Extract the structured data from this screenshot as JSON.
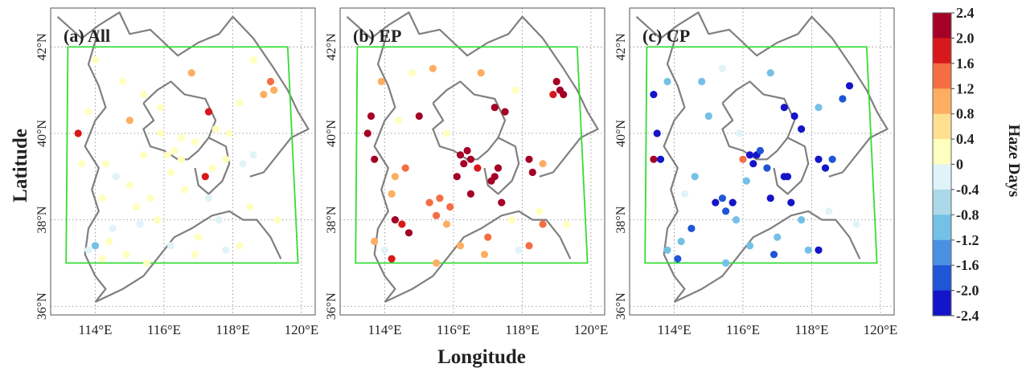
{
  "figure": {
    "x_axis_label": "Longitude",
    "y_axis_label": "Latitude",
    "lon_ticks": [
      "114°E",
      "116°E",
      "118°E",
      "120°E"
    ],
    "lat_ticks": [
      "42°N",
      "40°N",
      "38°N",
      "36°N"
    ],
    "lon_range": [
      112.7,
      120.4
    ],
    "lat_range": [
      35.8,
      42.9
    ],
    "grid": "dotted",
    "domain_box_color": "#33dd33",
    "panels": [
      {
        "id": "all",
        "title": "(a) All"
      },
      {
        "id": "ep",
        "title": "(b) EP"
      },
      {
        "id": "cp",
        "title": "(c) CP"
      }
    ],
    "colorbar": {
      "label": "Haze Days",
      "ticks": [
        "2.4",
        "2.0",
        "1.6",
        "1.2",
        "0.8",
        "0.4",
        "0",
        "-0.4",
        "-0.8",
        "-1.2",
        "-1.6",
        "-2.0",
        "-2.4"
      ],
      "colors": [
        "#a50026",
        "#d7191c",
        "#f46d43",
        "#fdae61",
        "#fee090",
        "#ffffbf",
        "#e0f3f8",
        "#abd9e9",
        "#74c0e6",
        "#4a90e2",
        "#1f55d6",
        "#1414c8"
      ]
    }
  },
  "chart_data": {
    "type": "scatter",
    "value_label": "Haze Days",
    "value_range": [
      -2.4,
      2.4
    ],
    "panels": [
      {
        "name": "(a) All",
        "points": [
          [
            113.5,
            40.0,
            1.6
          ],
          [
            113.8,
            40.5,
            0.4
          ],
          [
            113.6,
            39.3,
            0.4
          ],
          [
            114.3,
            39.3,
            0.4
          ],
          [
            114.2,
            38.5,
            0.4
          ],
          [
            114.5,
            37.8,
            -0.4
          ],
          [
            114.0,
            37.4,
            -0.8
          ],
          [
            114.4,
            37.5,
            0.4
          ],
          [
            113.8,
            37.3,
            -0.4
          ],
          [
            114.9,
            37.2,
            0.4
          ],
          [
            115.2,
            38.3,
            0.4
          ],
          [
            115.6,
            38.5,
            0.4
          ],
          [
            115.8,
            38.0,
            0.4
          ],
          [
            115.3,
            37.9,
            -0.4
          ],
          [
            116.1,
            39.5,
            0.4
          ],
          [
            116.3,
            39.6,
            0.4
          ],
          [
            116.5,
            39.4,
            0.4
          ],
          [
            116.2,
            39.1,
            0.4
          ],
          [
            116.6,
            38.7,
            0.4
          ],
          [
            117.2,
            39.0,
            1.6
          ],
          [
            117.4,
            39.2,
            0.4
          ],
          [
            117.3,
            38.5,
            -0.4
          ],
          [
            117.3,
            40.5,
            1.6
          ],
          [
            117.5,
            40.1,
            0.4
          ],
          [
            117.8,
            39.4,
            0.4
          ],
          [
            118.3,
            39.3,
            -0.4
          ],
          [
            118.6,
            39.5,
            -0.4
          ],
          [
            117.9,
            40.0,
            0.4
          ],
          [
            118.2,
            40.7,
            0.4
          ],
          [
            118.9,
            40.9,
            0.8
          ],
          [
            119.1,
            41.2,
            1.2
          ],
          [
            119.2,
            41.0,
            0.8
          ],
          [
            116.8,
            41.4,
            0.8
          ],
          [
            115.0,
            40.3,
            0.8
          ],
          [
            114.8,
            41.2,
            0.4
          ],
          [
            115.4,
            40.9,
            0.4
          ],
          [
            115.9,
            40.6,
            0.4
          ],
          [
            116.5,
            39.9,
            0.4
          ],
          [
            117.0,
            37.6,
            0.4
          ],
          [
            118.2,
            37.4,
            0.4
          ],
          [
            117.8,
            37.3,
            -0.4
          ],
          [
            116.2,
            37.4,
            -0.4
          ],
          [
            115.5,
            37.0,
            0.4
          ],
          [
            118.5,
            38.3,
            0.4
          ],
          [
            119.3,
            38.0,
            0.4
          ],
          [
            114.6,
            39.0,
            -0.4
          ],
          [
            115.0,
            38.8,
            0.4
          ],
          [
            115.9,
            40.0,
            0.4
          ],
          [
            118.6,
            41.7,
            0.4
          ],
          [
            114.0,
            41.7,
            0.4
          ],
          [
            116.9,
            39.8,
            0.4
          ],
          [
            117.6,
            38.0,
            -0.4
          ],
          [
            115.4,
            39.5,
            0.4
          ],
          [
            114.2,
            37.1,
            0.4
          ],
          [
            116.9,
            37.2,
            0.4
          ]
        ]
      },
      {
        "name": "(b) EP",
        "points": [
          [
            113.5,
            40.0,
            2.4
          ],
          [
            113.6,
            40.4,
            2.4
          ],
          [
            113.7,
            39.4,
            2.4
          ],
          [
            113.9,
            41.2,
            0.8
          ],
          [
            114.4,
            40.3,
            0.4
          ],
          [
            115.0,
            40.4,
            2.4
          ],
          [
            114.2,
            38.6,
            0.8
          ],
          [
            114.3,
            38.0,
            2.0
          ],
          [
            114.5,
            37.9,
            1.6
          ],
          [
            114.7,
            37.7,
            2.0
          ],
          [
            113.7,
            37.5,
            0.8
          ],
          [
            114.0,
            37.3,
            -0.4
          ],
          [
            114.2,
            37.1,
            1.6
          ],
          [
            115.3,
            38.4,
            1.2
          ],
          [
            115.6,
            38.5,
            1.2
          ],
          [
            115.9,
            38.3,
            1.2
          ],
          [
            115.5,
            38.1,
            1.2
          ],
          [
            115.8,
            37.9,
            0.8
          ],
          [
            116.2,
            39.5,
            2.4
          ],
          [
            116.4,
            39.6,
            2.4
          ],
          [
            116.3,
            39.3,
            2.4
          ],
          [
            116.5,
            39.4,
            2.0
          ],
          [
            116.7,
            39.2,
            1.6
          ],
          [
            116.1,
            39.0,
            2.0
          ],
          [
            116.5,
            38.6,
            2.0
          ],
          [
            117.2,
            39.0,
            2.4
          ],
          [
            117.3,
            39.2,
            2.4
          ],
          [
            117.1,
            38.9,
            2.0
          ],
          [
            117.4,
            38.4,
            2.0
          ],
          [
            117.2,
            40.6,
            2.4
          ],
          [
            117.5,
            40.5,
            2.4
          ],
          [
            118.2,
            39.4,
            2.4
          ],
          [
            118.3,
            39.1,
            2.0
          ],
          [
            118.6,
            39.3,
            0.8
          ],
          [
            118.9,
            40.9,
            1.6
          ],
          [
            119.1,
            41.0,
            2.4
          ],
          [
            119.2,
            40.9,
            2.4
          ],
          [
            119.0,
            41.2,
            2.0
          ],
          [
            116.8,
            41.4,
            0.8
          ],
          [
            115.4,
            41.5,
            0.8
          ],
          [
            114.8,
            41.4,
            0.4
          ],
          [
            117.8,
            41.0,
            0.4
          ],
          [
            118.2,
            37.4,
            1.2
          ],
          [
            117.9,
            37.3,
            -0.4
          ],
          [
            116.2,
            37.4,
            0.8
          ],
          [
            117.0,
            37.6,
            1.2
          ],
          [
            115.5,
            37.0,
            0.8
          ],
          [
            118.5,
            38.2,
            0.4
          ],
          [
            119.3,
            37.9,
            0.4
          ],
          [
            114.6,
            39.2,
            1.2
          ],
          [
            114.3,
            39.0,
            0.8
          ],
          [
            115.8,
            40.0,
            0.4
          ],
          [
            117.7,
            38.0,
            0.4
          ],
          [
            116.9,
            37.2,
            0.8
          ],
          [
            118.6,
            37.9,
            1.2
          ]
        ]
      },
      {
        "name": "(c) CP",
        "points": [
          [
            113.5,
            40.0,
            -2.4
          ],
          [
            113.6,
            39.4,
            -2.4
          ],
          [
            113.4,
            39.4,
            2.4
          ],
          [
            113.4,
            40.9,
            -2.0
          ],
          [
            113.8,
            41.2,
            -1.2
          ],
          [
            114.5,
            37.8,
            -1.6
          ],
          [
            114.2,
            37.5,
            -1.2
          ],
          [
            113.8,
            37.3,
            -0.8
          ],
          [
            114.1,
            37.1,
            -1.6
          ],
          [
            115.2,
            38.4,
            -2.0
          ],
          [
            115.4,
            38.5,
            -1.6
          ],
          [
            115.7,
            38.4,
            -2.0
          ],
          [
            115.5,
            38.2,
            -1.6
          ],
          [
            115.8,
            38.0,
            -1.2
          ],
          [
            116.2,
            39.5,
            -2.0
          ],
          [
            116.4,
            39.5,
            -2.4
          ],
          [
            116.3,
            39.3,
            -2.0
          ],
          [
            116.5,
            39.6,
            -1.6
          ],
          [
            116.7,
            39.2,
            -1.6
          ],
          [
            116.1,
            38.9,
            -1.2
          ],
          [
            116.8,
            38.5,
            -2.4
          ],
          [
            117.2,
            39.0,
            -2.4
          ],
          [
            117.3,
            39.0,
            -2.4
          ],
          [
            117.4,
            38.4,
            -2.4
          ],
          [
            117.2,
            40.6,
            -2.4
          ],
          [
            117.5,
            40.4,
            -2.0
          ],
          [
            117.7,
            40.1,
            -2.0
          ],
          [
            118.2,
            39.4,
            -2.4
          ],
          [
            118.4,
            39.2,
            -2.0
          ],
          [
            118.6,
            39.4,
            -1.6
          ],
          [
            119.1,
            41.1,
            -2.4
          ],
          [
            118.9,
            40.8,
            -1.6
          ],
          [
            118.2,
            40.6,
            -1.2
          ],
          [
            116.0,
            39.4,
            1.2
          ],
          [
            114.6,
            39.0,
            -1.2
          ],
          [
            116.2,
            37.4,
            -0.8
          ],
          [
            117.0,
            37.6,
            -1.2
          ],
          [
            118.2,
            37.3,
            -2.0
          ],
          [
            117.9,
            37.3,
            -1.2
          ],
          [
            115.5,
            37.0,
            -1.2
          ],
          [
            118.5,
            38.2,
            -0.4
          ],
          [
            119.3,
            37.9,
            -0.4
          ],
          [
            116.8,
            41.4,
            -0.8
          ],
          [
            115.4,
            41.5,
            -0.4
          ],
          [
            114.8,
            41.2,
            -0.8
          ],
          [
            115.9,
            40.0,
            -0.4
          ],
          [
            117.7,
            38.0,
            -0.8
          ],
          [
            116.9,
            37.2,
            -1.6
          ],
          [
            115.0,
            40.4,
            -0.8
          ],
          [
            114.3,
            38.6,
            -0.4
          ]
        ]
      }
    ]
  }
}
